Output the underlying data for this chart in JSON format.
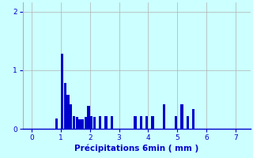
{
  "xlabel": "Précipitations 6min ( mm )",
  "bar_color": "#0000cc",
  "background_color": "#ccffff",
  "grid_color": "#b0b0b0",
  "text_color": "#0000cc",
  "xlim": [
    -0.3,
    7.5
  ],
  "ylim": [
    0,
    2.15
  ],
  "xticks": [
    0,
    1,
    2,
    3,
    4,
    5,
    6,
    7
  ],
  "yticks": [
    0,
    1,
    2
  ],
  "bar_centers": [
    0.85,
    1.05,
    1.15,
    1.25,
    1.35,
    1.45,
    1.55,
    1.65,
    1.75,
    1.85,
    1.95,
    2.05,
    2.15,
    2.35,
    2.55,
    2.75,
    3.55,
    3.75,
    3.95,
    4.15,
    4.55,
    4.95,
    5.15,
    5.35,
    5.55
  ],
  "bar_heights": [
    0.18,
    1.28,
    0.78,
    0.58,
    0.42,
    0.22,
    0.2,
    0.17,
    0.17,
    0.2,
    0.4,
    0.22,
    0.2,
    0.22,
    0.22,
    0.22,
    0.22,
    0.22,
    0.22,
    0.22,
    0.42,
    0.22,
    0.42,
    0.22,
    0.34
  ],
  "bar_width": 0.09,
  "xlabel_fontsize": 7.5,
  "tick_fontsize": 6.5
}
